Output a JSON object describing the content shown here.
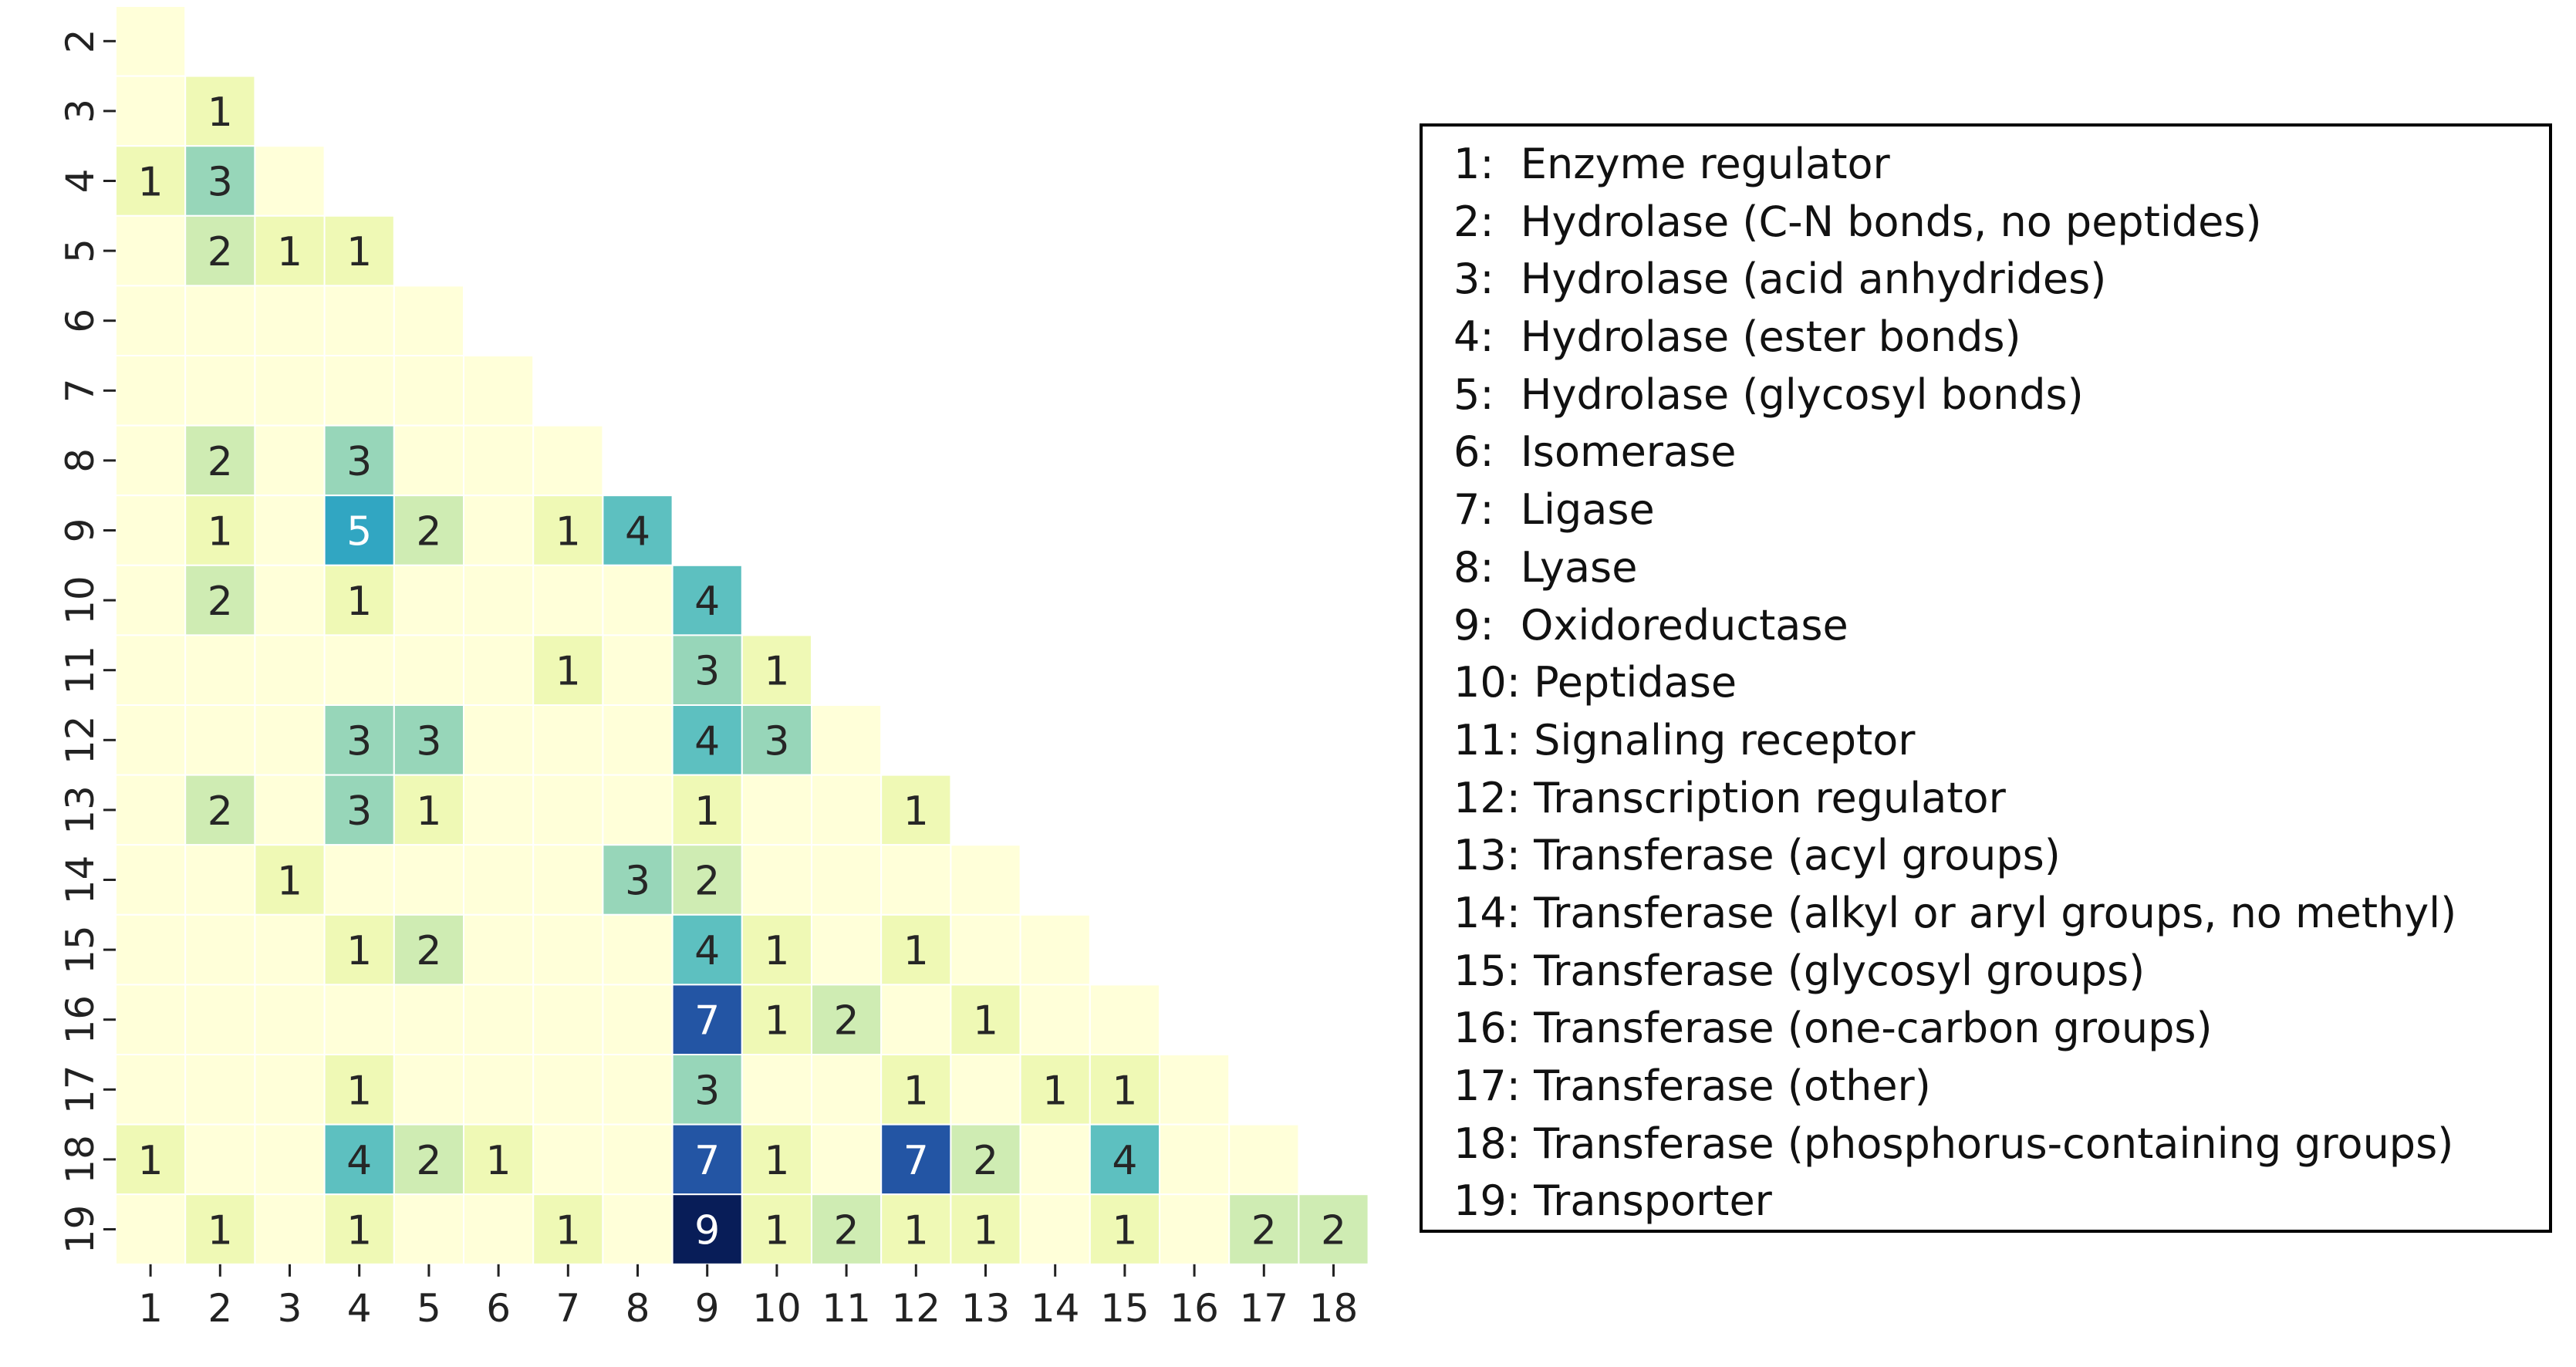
{
  "chart_data": {
    "type": "heatmap",
    "x_categories": [
      "1",
      "2",
      "3",
      "4",
      "5",
      "6",
      "7",
      "8",
      "9",
      "10",
      "11",
      "12",
      "13",
      "14",
      "15",
      "16",
      "17",
      "18"
    ],
    "y_categories": [
      "2",
      "3",
      "4",
      "5",
      "6",
      "7",
      "8",
      "9",
      "10",
      "11",
      "12",
      "13",
      "14",
      "15",
      "16",
      "17",
      "18",
      "19"
    ],
    "values": [
      [
        0,
        null,
        null,
        null,
        null,
        null,
        null,
        null,
        null,
        null,
        null,
        null,
        null,
        null,
        null,
        null,
        null,
        null
      ],
      [
        0,
        1,
        null,
        null,
        null,
        null,
        null,
        null,
        null,
        null,
        null,
        null,
        null,
        null,
        null,
        null,
        null,
        null
      ],
      [
        1,
        3,
        0,
        null,
        null,
        null,
        null,
        null,
        null,
        null,
        null,
        null,
        null,
        null,
        null,
        null,
        null,
        null
      ],
      [
        0,
        2,
        1,
        1,
        null,
        null,
        null,
        null,
        null,
        null,
        null,
        null,
        null,
        null,
        null,
        null,
        null,
        null
      ],
      [
        0,
        0,
        0,
        0,
        0,
        null,
        null,
        null,
        null,
        null,
        null,
        null,
        null,
        null,
        null,
        null,
        null,
        null
      ],
      [
        0,
        0,
        0,
        0,
        0,
        0,
        null,
        null,
        null,
        null,
        null,
        null,
        null,
        null,
        null,
        null,
        null,
        null
      ],
      [
        0,
        2,
        0,
        3,
        0,
        0,
        0,
        null,
        null,
        null,
        null,
        null,
        null,
        null,
        null,
        null,
        null,
        null
      ],
      [
        0,
        1,
        0,
        5,
        2,
        0,
        1,
        4,
        null,
        null,
        null,
        null,
        null,
        null,
        null,
        null,
        null,
        null
      ],
      [
        0,
        2,
        0,
        1,
        0,
        0,
        0,
        0,
        4,
        null,
        null,
        null,
        null,
        null,
        null,
        null,
        null,
        null
      ],
      [
        0,
        0,
        0,
        0,
        0,
        0,
        1,
        0,
        3,
        1,
        null,
        null,
        null,
        null,
        null,
        null,
        null,
        null
      ],
      [
        0,
        0,
        0,
        3,
        3,
        0,
        0,
        0,
        4,
        3,
        0,
        null,
        null,
        null,
        null,
        null,
        null,
        null
      ],
      [
        0,
        2,
        0,
        3,
        1,
        0,
        0,
        0,
        1,
        0,
        0,
        1,
        null,
        null,
        null,
        null,
        null,
        null
      ],
      [
        0,
        0,
        1,
        0,
        0,
        0,
        0,
        3,
        2,
        0,
        0,
        0,
        0,
        null,
        null,
        null,
        null,
        null
      ],
      [
        0,
        0,
        0,
        1,
        2,
        0,
        0,
        0,
        4,
        1,
        0,
        1,
        0,
        0,
        null,
        null,
        null,
        null
      ],
      [
        0,
        0,
        0,
        0,
        0,
        0,
        0,
        0,
        7,
        1,
        2,
        0,
        1,
        0,
        0,
        null,
        null,
        null
      ],
      [
        0,
        0,
        0,
        1,
        0,
        0,
        0,
        0,
        3,
        0,
        0,
        1,
        0,
        1,
        1,
        0,
        null,
        null
      ],
      [
        1,
        0,
        0,
        4,
        2,
        1,
        0,
        0,
        7,
        1,
        0,
        7,
        2,
        0,
        4,
        0,
        0,
        null
      ],
      [
        0,
        1,
        0,
        1,
        0,
        0,
        1,
        0,
        9,
        1,
        2,
        1,
        1,
        0,
        1,
        0,
        2,
        2
      ]
    ],
    "value_range": [
      0,
      9
    ],
    "colormap": "YlGnBu",
    "zero_cells_annotated": false,
    "legend": [
      "1:  Enzyme regulator",
      "2:  Hydrolase (C-N bonds, no peptides)",
      "3:  Hydrolase (acid anhydrides)",
      "4:  Hydrolase (ester bonds)",
      "5:  Hydrolase (glycosyl bonds)",
      "6:  Isomerase",
      "7:  Ligase",
      "8:  Lyase",
      "9:  Oxidoreductase",
      "10: Peptidase",
      "11: Signaling receptor",
      "12: Transcription regulator",
      "13: Transferase (acyl groups)",
      "14: Transferase (alkyl or aryl groups, no methyl)",
      "15: Transferase (glycosyl groups)",
      "16: Transferase (one-carbon groups)",
      "17: Transferase (other)",
      "18: Transferase (phosphorus-containing groups)",
      "19: Transporter"
    ]
  }
}
